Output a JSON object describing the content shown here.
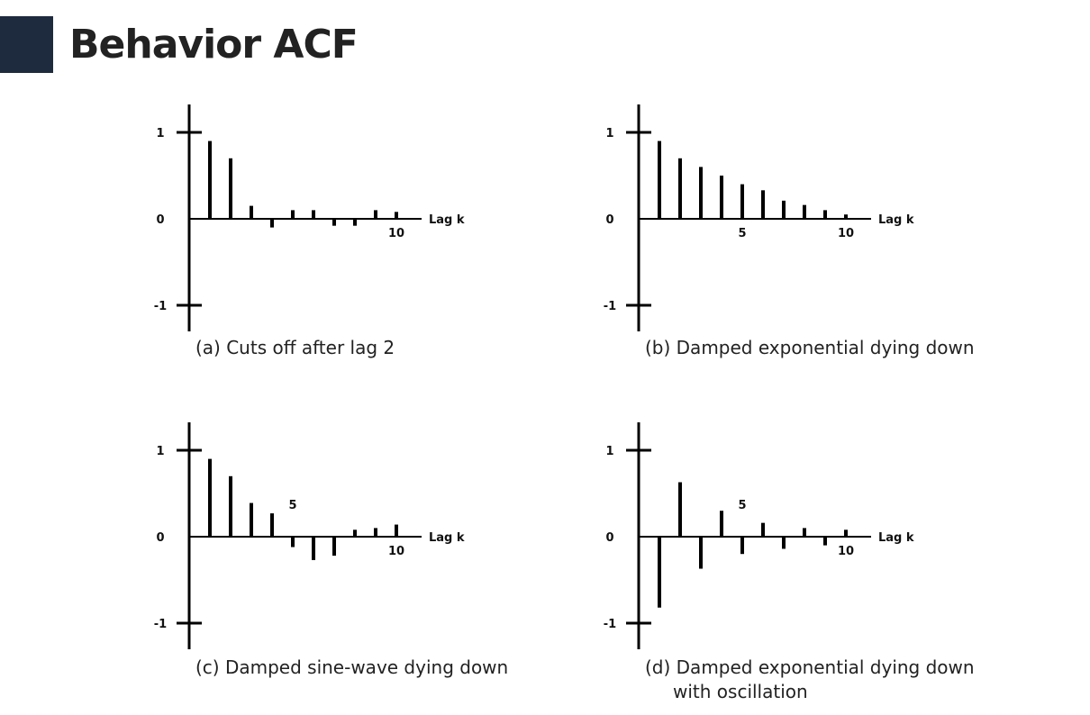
{
  "title": "Behavior ACF",
  "colors": {
    "accent_block": "#1e2a3e",
    "ink": "#000000"
  },
  "chart_data": [
    {
      "type": "bar",
      "x": [
        1,
        2,
        3,
        4,
        5,
        6,
        7,
        8,
        9,
        10
      ],
      "values": [
        0.9,
        0.7,
        0.15,
        -0.1,
        0.1,
        0.1,
        -0.08,
        -0.08,
        0.1,
        0.08
      ],
      "ylim": [
        -1,
        1
      ],
      "yticks": [
        "1",
        "0",
        "-1"
      ],
      "xticks": [
        {
          "x": 10,
          "label": "10"
        }
      ],
      "xlabel": "Lag k",
      "caption": [
        "(a) Cuts off after lag 2"
      ]
    },
    {
      "type": "bar",
      "x": [
        1,
        2,
        3,
        4,
        5,
        6,
        7,
        8,
        9,
        10
      ],
      "values": [
        0.9,
        0.7,
        0.6,
        0.5,
        0.4,
        0.33,
        0.21,
        0.16,
        0.1,
        0.05
      ],
      "ylim": [
        -1,
        1
      ],
      "yticks": [
        "1",
        "0",
        "-1"
      ],
      "xticks": [
        {
          "x": 5,
          "label": "5"
        },
        {
          "x": 10,
          "label": "10"
        }
      ],
      "xlabel": "Lag k",
      "caption": [
        "(b) Damped exponential dying down"
      ]
    },
    {
      "type": "bar",
      "x": [
        1,
        2,
        3,
        4,
        5,
        6,
        7,
        8,
        9,
        10
      ],
      "values": [
        0.9,
        0.7,
        0.39,
        0.27,
        -0.12,
        -0.27,
        -0.22,
        0.08,
        0.1,
        0.14
      ],
      "ylim": [
        -1,
        1
      ],
      "yticks": [
        "1",
        "0",
        "-1"
      ],
      "xticks": [
        {
          "x": 5,
          "label": "5",
          "above": true
        },
        {
          "x": 10,
          "label": "10"
        }
      ],
      "xlabel": "Lag k",
      "caption": [
        "(c) Damped sine-wave dying down"
      ]
    },
    {
      "type": "bar",
      "x": [
        1,
        2,
        3,
        4,
        5,
        6,
        7,
        8,
        9,
        10
      ],
      "values": [
        -0.82,
        0.63,
        -0.37,
        0.3,
        -0.2,
        0.16,
        -0.14,
        0.1,
        -0.1,
        0.08
      ],
      "ylim": [
        -1,
        1
      ],
      "yticks": [
        "1",
        "0",
        "-1"
      ],
      "xticks": [
        {
          "x": 5,
          "label": "5",
          "above": true
        },
        {
          "x": 10,
          "label": "10"
        }
      ],
      "xlabel": "Lag k",
      "caption": [
        "(d) Damped exponential dying down",
        "with oscillation"
      ]
    }
  ]
}
